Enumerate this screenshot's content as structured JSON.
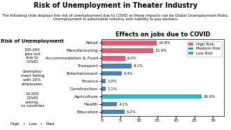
{
  "title": "Risk of Unemployment in Theater Industry",
  "subtitle": "The following slide displays the risk of unemployment due to COVID as these impacts can be Global Unemployment Risks, Unemployment is automobile industry and inability to pay workers.",
  "annotations": [
    "Risk of Unemployment",
    "100,000\njobs lost\ndue to\nCOVID",
    "Unemploy-\nment falling\nwith 20%\nemployees",
    "10,000\nCOVID\nunemp.\nvs countries",
    "High   •   Low   •   Med"
  ],
  "chart_data": {
    "type": "bar",
    "orientation": "horizontal",
    "title": "Effects on jobs due to COVID",
    "categories": [
      "Retail",
      "Manufacturing",
      "Accommodation & Food",
      "Transport",
      "Entertainment",
      "Finance",
      "Construction",
      "Agriculture",
      "Health",
      "Education"
    ],
    "series": [
      {
        "name": "High Risk",
        "color": "#e05c6e",
        "values": [
          14.8,
          13.9,
          6.3,
          null,
          null,
          null,
          null,
          null,
          null,
          null
        ],
        "value_labels": [
          "14.8%",
          "13.9%",
          "6.3%",
          null,
          null,
          null,
          null,
          null,
          null,
          null
        ]
      },
      {
        "name": "Medium Risk",
        "color": "#4a7fbd",
        "values": [
          null,
          null,
          null,
          8.1,
          5.4,
          1.0,
          1.1,
          null,
          4.1,
          6.2
        ],
        "value_labels": [
          null,
          null,
          null,
          "8.1%",
          "5.4%",
          "1.0%",
          "1.1%",
          null,
          "4.1%",
          "6.2%"
        ]
      },
      {
        "name": "Low Risk",
        "color": "#2ab5c8",
        "values": [
          null,
          null,
          null,
          null,
          null,
          null,
          null,
          26.9,
          null,
          null
        ],
        "value_labels": [
          null,
          null,
          null,
          null,
          null,
          null,
          null,
          "26.9%",
          null,
          null
        ]
      }
    ],
    "xlim": [
      0,
      33
    ],
    "xticks": [
      0,
      5,
      10,
      15,
      20,
      25,
      30
    ],
    "data_labels": true,
    "legend": "upper right",
    "grid": false
  }
}
